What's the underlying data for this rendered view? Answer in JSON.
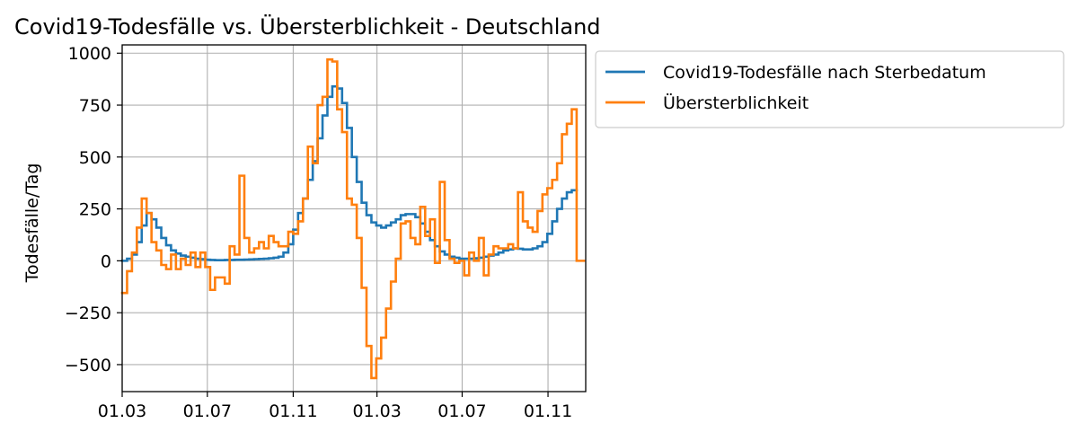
{
  "chart_data": {
    "type": "line",
    "title": "Covid19-Todesfälle vs. Übersterblichkeit - Deutschland",
    "xlabel": "",
    "ylabel": "Todesfälle/Tag",
    "xlim": [
      "2020-03-01",
      "2021-12-25"
    ],
    "ylim": [
      -630,
      1040
    ],
    "grid": true,
    "legend_position": "outside-top-right",
    "x_ticks": [
      {
        "date": "2020-03-01",
        "label": "01.03"
      },
      {
        "date": "2020-07-01",
        "label": "01.07"
      },
      {
        "date": "2020-11-01",
        "label": "01.11"
      },
      {
        "date": "2021-03-01",
        "label": "01.03"
      },
      {
        "date": "2021-07-01",
        "label": "01.07"
      },
      {
        "date": "2021-11-01",
        "label": "01.11"
      }
    ],
    "y_ticks": [
      {
        "value": 1000,
        "label": "1000"
      },
      {
        "value": 750,
        "label": "750"
      },
      {
        "value": 500,
        "label": "500"
      },
      {
        "value": 250,
        "label": "250"
      },
      {
        "value": 0,
        "label": "0"
      },
      {
        "value": -250,
        "label": "−250"
      },
      {
        "value": -500,
        "label": "−500"
      }
    ],
    "series": [
      {
        "name": "Covid19-Todesfälle nach Sterbedatum",
        "color": "#1f77b4",
        "step": true,
        "points": [
          [
            "2020-03-01",
            0
          ],
          [
            "2020-03-08",
            10
          ],
          [
            "2020-03-15",
            30
          ],
          [
            "2020-03-22",
            90
          ],
          [
            "2020-03-29",
            170
          ],
          [
            "2020-04-05",
            230
          ],
          [
            "2020-04-12",
            200
          ],
          [
            "2020-04-19",
            160
          ],
          [
            "2020-04-26",
            110
          ],
          [
            "2020-05-03",
            75
          ],
          [
            "2020-05-10",
            50
          ],
          [
            "2020-05-17",
            35
          ],
          [
            "2020-05-24",
            25
          ],
          [
            "2020-05-31",
            20
          ],
          [
            "2020-06-07",
            15
          ],
          [
            "2020-06-14",
            10
          ],
          [
            "2020-06-21",
            8
          ],
          [
            "2020-06-28",
            5
          ],
          [
            "2020-07-05",
            4
          ],
          [
            "2020-07-12",
            3
          ],
          [
            "2020-07-19",
            3
          ],
          [
            "2020-07-26",
            4
          ],
          [
            "2020-08-02",
            4
          ],
          [
            "2020-08-09",
            5
          ],
          [
            "2020-08-16",
            5
          ],
          [
            "2020-08-23",
            6
          ],
          [
            "2020-08-30",
            7
          ],
          [
            "2020-09-06",
            8
          ],
          [
            "2020-09-13",
            9
          ],
          [
            "2020-09-20",
            10
          ],
          [
            "2020-09-27",
            12
          ],
          [
            "2020-10-04",
            15
          ],
          [
            "2020-10-11",
            20
          ],
          [
            "2020-10-18",
            40
          ],
          [
            "2020-10-25",
            80
          ],
          [
            "2020-11-01",
            150
          ],
          [
            "2020-11-08",
            230
          ],
          [
            "2020-11-15",
            300
          ],
          [
            "2020-11-22",
            390
          ],
          [
            "2020-11-29",
            480
          ],
          [
            "2020-12-06",
            590
          ],
          [
            "2020-12-13",
            700
          ],
          [
            "2020-12-20",
            790
          ],
          [
            "2020-12-27",
            840
          ],
          [
            "2021-01-03",
            830
          ],
          [
            "2021-01-10",
            760
          ],
          [
            "2021-01-17",
            640
          ],
          [
            "2021-01-24",
            500
          ],
          [
            "2021-01-31",
            380
          ],
          [
            "2021-02-07",
            280
          ],
          [
            "2021-02-14",
            220
          ],
          [
            "2021-02-21",
            185
          ],
          [
            "2021-02-28",
            170
          ],
          [
            "2021-03-07",
            160
          ],
          [
            "2021-03-14",
            170
          ],
          [
            "2021-03-21",
            185
          ],
          [
            "2021-03-28",
            200
          ],
          [
            "2021-04-04",
            220
          ],
          [
            "2021-04-11",
            225
          ],
          [
            "2021-04-18",
            225
          ],
          [
            "2021-04-25",
            210
          ],
          [
            "2021-05-02",
            180
          ],
          [
            "2021-05-09",
            140
          ],
          [
            "2021-05-16",
            100
          ],
          [
            "2021-05-23",
            70
          ],
          [
            "2021-05-30",
            45
          ],
          [
            "2021-06-06",
            30
          ],
          [
            "2021-06-13",
            20
          ],
          [
            "2021-06-20",
            15
          ],
          [
            "2021-06-27",
            10
          ],
          [
            "2021-07-04",
            10
          ],
          [
            "2021-07-11",
            10
          ],
          [
            "2021-07-18",
            12
          ],
          [
            "2021-07-25",
            15
          ],
          [
            "2021-08-01",
            20
          ],
          [
            "2021-08-08",
            25
          ],
          [
            "2021-08-15",
            30
          ],
          [
            "2021-08-22",
            40
          ],
          [
            "2021-08-29",
            50
          ],
          [
            "2021-09-05",
            55
          ],
          [
            "2021-09-12",
            60
          ],
          [
            "2021-09-19",
            58
          ],
          [
            "2021-09-26",
            55
          ],
          [
            "2021-10-03",
            55
          ],
          [
            "2021-10-10",
            60
          ],
          [
            "2021-10-17",
            70
          ],
          [
            "2021-10-24",
            90
          ],
          [
            "2021-10-31",
            130
          ],
          [
            "2021-11-07",
            190
          ],
          [
            "2021-11-14",
            250
          ],
          [
            "2021-11-21",
            300
          ],
          [
            "2021-11-28",
            330
          ],
          [
            "2021-12-05",
            340
          ]
        ]
      },
      {
        "name": "Übersterblichkeit",
        "color": "#ff7f0e",
        "step": true,
        "points": [
          [
            "2020-03-01",
            -155
          ],
          [
            "2020-03-08",
            -50
          ],
          [
            "2020-03-15",
            40
          ],
          [
            "2020-03-22",
            160
          ],
          [
            "2020-03-29",
            300
          ],
          [
            "2020-04-05",
            230
          ],
          [
            "2020-04-12",
            90
          ],
          [
            "2020-04-19",
            50
          ],
          [
            "2020-04-26",
            -20
          ],
          [
            "2020-05-03",
            -40
          ],
          [
            "2020-05-10",
            30
          ],
          [
            "2020-05-17",
            -40
          ],
          [
            "2020-05-24",
            10
          ],
          [
            "2020-05-31",
            -20
          ],
          [
            "2020-06-07",
            40
          ],
          [
            "2020-06-14",
            -30
          ],
          [
            "2020-06-21",
            40
          ],
          [
            "2020-06-28",
            -30
          ],
          [
            "2020-07-05",
            -140
          ],
          [
            "2020-07-12",
            -80
          ],
          [
            "2020-07-19",
            -80
          ],
          [
            "2020-07-26",
            -110
          ],
          [
            "2020-08-02",
            70
          ],
          [
            "2020-08-09",
            30
          ],
          [
            "2020-08-16",
            410
          ],
          [
            "2020-08-23",
            110
          ],
          [
            "2020-08-30",
            40
          ],
          [
            "2020-09-06",
            60
          ],
          [
            "2020-09-13",
            90
          ],
          [
            "2020-09-20",
            60
          ],
          [
            "2020-09-27",
            120
          ],
          [
            "2020-10-04",
            90
          ],
          [
            "2020-10-11",
            70
          ],
          [
            "2020-10-18",
            70
          ],
          [
            "2020-10-25",
            140
          ],
          [
            "2020-11-01",
            130
          ],
          [
            "2020-11-08",
            190
          ],
          [
            "2020-11-15",
            300
          ],
          [
            "2020-11-22",
            550
          ],
          [
            "2020-11-29",
            470
          ],
          [
            "2020-12-06",
            750
          ],
          [
            "2020-12-13",
            790
          ],
          [
            "2020-12-20",
            970
          ],
          [
            "2020-12-27",
            960
          ],
          [
            "2021-01-03",
            730
          ],
          [
            "2021-01-10",
            620
          ],
          [
            "2021-01-17",
            300
          ],
          [
            "2021-01-24",
            270
          ],
          [
            "2021-01-31",
            110
          ],
          [
            "2021-02-07",
            -130
          ],
          [
            "2021-02-14",
            -410
          ],
          [
            "2021-02-21",
            -565
          ],
          [
            "2021-02-28",
            -470
          ],
          [
            "2021-03-07",
            -370
          ],
          [
            "2021-03-14",
            -230
          ],
          [
            "2021-03-21",
            -100
          ],
          [
            "2021-03-28",
            10
          ],
          [
            "2021-04-04",
            180
          ],
          [
            "2021-04-11",
            190
          ],
          [
            "2021-04-18",
            110
          ],
          [
            "2021-04-25",
            80
          ],
          [
            "2021-05-02",
            260
          ],
          [
            "2021-05-09",
            120
          ],
          [
            "2021-05-16",
            200
          ],
          [
            "2021-05-23",
            -10
          ],
          [
            "2021-05-30",
            380
          ],
          [
            "2021-06-06",
            100
          ],
          [
            "2021-06-13",
            10
          ],
          [
            "2021-06-20",
            -10
          ],
          [
            "2021-06-27",
            0
          ],
          [
            "2021-07-04",
            -70
          ],
          [
            "2021-07-11",
            40
          ],
          [
            "2021-07-18",
            0
          ],
          [
            "2021-07-25",
            110
          ],
          [
            "2021-08-01",
            -70
          ],
          [
            "2021-08-08",
            30
          ],
          [
            "2021-08-15",
            70
          ],
          [
            "2021-08-22",
            60
          ],
          [
            "2021-08-29",
            60
          ],
          [
            "2021-09-05",
            80
          ],
          [
            "2021-09-12",
            60
          ],
          [
            "2021-09-19",
            330
          ],
          [
            "2021-09-26",
            190
          ],
          [
            "2021-10-03",
            160
          ],
          [
            "2021-10-10",
            140
          ],
          [
            "2021-10-17",
            240
          ],
          [
            "2021-10-24",
            320
          ],
          [
            "2021-10-31",
            350
          ],
          [
            "2021-11-07",
            390
          ],
          [
            "2021-11-14",
            470
          ],
          [
            "2021-11-21",
            610
          ],
          [
            "2021-11-28",
            660
          ],
          [
            "2021-12-05",
            730
          ],
          [
            "2021-12-12",
            0
          ],
          [
            "2021-12-19",
            0
          ]
        ]
      }
    ]
  }
}
